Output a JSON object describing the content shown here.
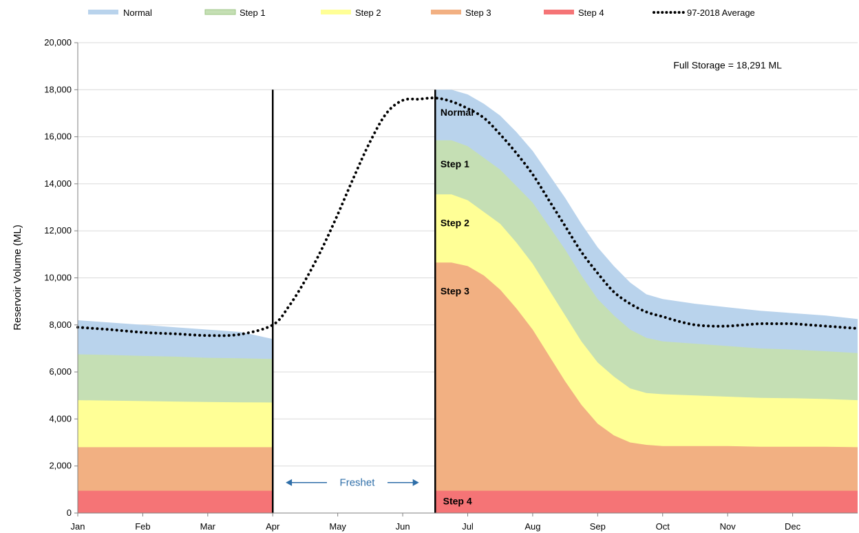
{
  "chart_data": {
    "type": "area",
    "title": "",
    "xlabel": "",
    "ylabel": "Reservoir Volume (ML)",
    "ylim": [
      0,
      20000
    ],
    "yticks": [
      "0",
      "2,000",
      "4,000",
      "6,000",
      "8,000",
      "10,000",
      "12,000",
      "14,000",
      "16,000",
      "18,000",
      "20,000"
    ],
    "months": [
      "Jan",
      "Feb",
      "Mar",
      "Apr",
      "May",
      "Jun",
      "Jul",
      "Aug",
      "Sep",
      "Oct",
      "Nov",
      "Dec"
    ],
    "grid": true,
    "legend_position": "top",
    "colors": {
      "Normal": "#b9d3ec",
      "Step 1": "#c5dfb4",
      "Step 2": "#ffff96",
      "Step 3": "#f2b082",
      "Step 4": "#f57476",
      "average": "#000000",
      "marker_line": "#000000",
      "freshet": "#2e6ea8"
    },
    "legend": [
      "Normal",
      "Step 1",
      "Step 2",
      "Step 3",
      "Step 4",
      "97-2018 Average"
    ],
    "x_unit": "month",
    "x_period_1": [
      1.0,
      4.0
    ],
    "x_period_2": [
      6.5,
      13.0
    ],
    "series": [
      {
        "name": "Normal",
        "x": [
          1.0,
          1.5,
          2.0,
          2.5,
          3.0,
          3.5,
          4.0,
          6.5,
          6.75,
          7.0,
          7.25,
          7.5,
          7.75,
          8.0,
          8.25,
          8.5,
          8.75,
          9.0,
          9.25,
          9.5,
          9.75,
          10.0,
          10.5,
          11.0,
          11.5,
          12.0,
          12.5,
          13.0
        ],
        "values": [
          8200,
          8100,
          8000,
          7900,
          7800,
          7700,
          7400,
          18000,
          18000,
          17800,
          17400,
          16900,
          16200,
          15400,
          14400,
          13400,
          12300,
          11300,
          10500,
          9800,
          9300,
          9100,
          8900,
          8750,
          8600,
          8500,
          8400,
          8250
        ]
      },
      {
        "name": "Step 1",
        "x": [
          1.0,
          1.5,
          2.0,
          2.5,
          3.0,
          3.5,
          4.0,
          6.5,
          6.75,
          7.0,
          7.25,
          7.5,
          7.75,
          8.0,
          8.25,
          8.5,
          8.75,
          9.0,
          9.25,
          9.5,
          9.75,
          10.0,
          10.5,
          11.0,
          11.5,
          12.0,
          12.5,
          13.0
        ],
        "values": [
          6750,
          6720,
          6680,
          6650,
          6600,
          6580,
          6550,
          15850,
          15850,
          15600,
          15100,
          14600,
          13900,
          13200,
          12200,
          11200,
          10100,
          9100,
          8400,
          7800,
          7450,
          7300,
          7200,
          7100,
          7000,
          6950,
          6880,
          6800
        ]
      },
      {
        "name": "Step 2",
        "x": [
          1.0,
          1.5,
          2.0,
          2.5,
          3.0,
          3.5,
          4.0,
          6.5,
          6.75,
          7.0,
          7.25,
          7.5,
          7.75,
          8.0,
          8.25,
          8.5,
          8.75,
          9.0,
          9.25,
          9.5,
          9.75,
          10.0,
          10.5,
          11.0,
          11.5,
          12.0,
          12.5,
          13.0
        ],
        "values": [
          4800,
          4780,
          4760,
          4740,
          4720,
          4710,
          4700,
          13550,
          13550,
          13300,
          12800,
          12300,
          11500,
          10600,
          9500,
          8400,
          7300,
          6400,
          5800,
          5300,
          5100,
          5050,
          5000,
          4950,
          4900,
          4880,
          4850,
          4800
        ]
      },
      {
        "name": "Step 3",
        "x": [
          1.0,
          1.5,
          2.0,
          2.5,
          3.0,
          3.5,
          4.0,
          6.5,
          6.75,
          7.0,
          7.25,
          7.5,
          7.75,
          8.0,
          8.25,
          8.5,
          8.75,
          9.0,
          9.25,
          9.5,
          9.75,
          10.0,
          10.5,
          11.0,
          11.5,
          12.0,
          12.5,
          13.0
        ],
        "values": [
          2800,
          2800,
          2800,
          2800,
          2800,
          2800,
          2800,
          10650,
          10650,
          10500,
          10100,
          9500,
          8700,
          7800,
          6700,
          5600,
          4600,
          3800,
          3300,
          3000,
          2900,
          2850,
          2850,
          2850,
          2820,
          2820,
          2820,
          2800
        ]
      },
      {
        "name": "Step 4",
        "x": [
          1.0,
          4.0,
          6.5,
          13.0
        ],
        "values": [
          950,
          950,
          950,
          950
        ]
      },
      {
        "name": "97-2018 Average",
        "x": [
          1.0,
          1.5,
          2.0,
          2.5,
          3.0,
          3.5,
          4.0,
          4.25,
          4.5,
          4.75,
          5.0,
          5.25,
          5.5,
          5.75,
          6.0,
          6.25,
          6.5,
          6.75,
          7.0,
          7.25,
          7.5,
          7.75,
          8.0,
          8.25,
          8.5,
          8.75,
          9.0,
          9.25,
          9.5,
          9.75,
          10.0,
          10.25,
          10.5,
          10.75,
          11.0,
          11.25,
          11.5,
          11.75,
          12.0,
          12.25,
          12.5,
          12.75,
          13.0
        ],
        "values": [
          7900,
          7800,
          7680,
          7620,
          7550,
          7600,
          8000,
          8800,
          9900,
          11200,
          12700,
          14300,
          15800,
          17000,
          17550,
          17600,
          17650,
          17500,
          17200,
          16800,
          16100,
          15300,
          14400,
          13300,
          12200,
          11100,
          10200,
          9400,
          8900,
          8550,
          8350,
          8150,
          8000,
          7950,
          7950,
          8000,
          8050,
          8050,
          8050,
          8000,
          7950,
          7900,
          7850
        ]
      }
    ],
    "vertical_lines": [
      4.0,
      6.5
    ],
    "zone_labels": [
      {
        "text": "Normal",
        "x": 6.58,
        "y": 16900
      },
      {
        "text": "Step 1",
        "x": 6.58,
        "y": 14700
      },
      {
        "text": "Step 2",
        "x": 6.58,
        "y": 12200
      },
      {
        "text": "Step 3",
        "x": 6.58,
        "y": 9300
      },
      {
        "text": "Step 4",
        "x": 6.62,
        "y": 370
      }
    ],
    "annotations": {
      "full_storage": "Full Storage  = 18,291 ML",
      "full_storage_at": {
        "x": 11.0,
        "y": 18900
      },
      "freshet": "Freshet",
      "freshet_at": {
        "x": 5.3,
        "y": 1150
      },
      "freshet_arrow_from": 4.2,
      "freshet_arrow_to": 6.25
    }
  }
}
